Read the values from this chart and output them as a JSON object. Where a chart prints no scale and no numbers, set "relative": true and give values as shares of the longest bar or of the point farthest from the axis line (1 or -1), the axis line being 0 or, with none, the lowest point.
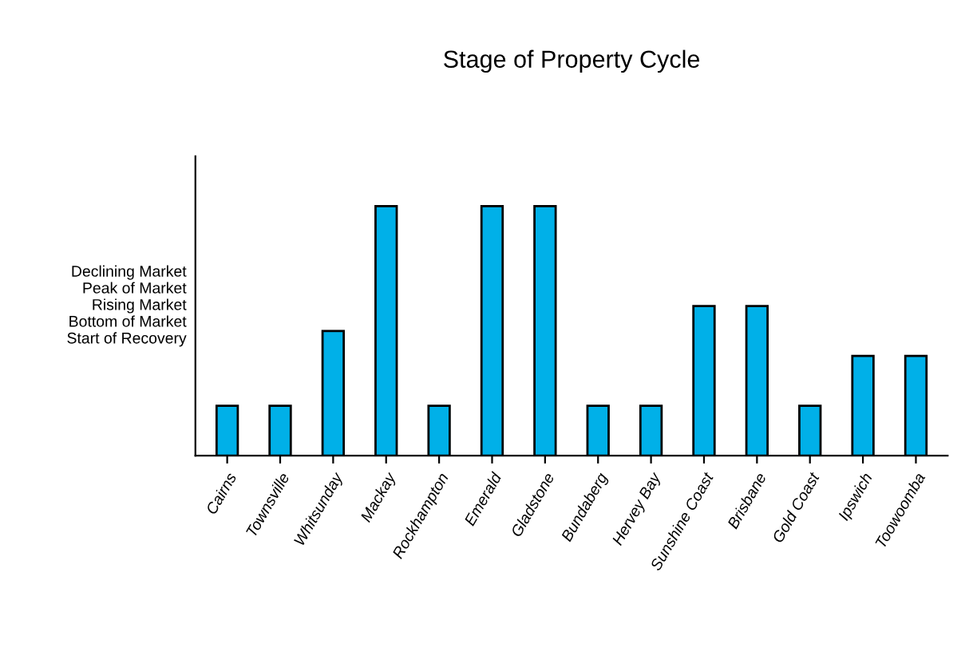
{
  "chart_data": {
    "type": "bar",
    "title": "Stage of Property Cycle",
    "ylabel": "Declining Market\nPeak of Market\nRising Market\nBottom of Market\nStart of Recovery",
    "categories": [
      "Cairns",
      "Townsville",
      "Whitsunday",
      "Mackay",
      "Rockhampton",
      "Emerald",
      "Gladstone",
      "Bundaberg",
      "Hervey Bay",
      "Sunshine Coast",
      "Brisbane",
      "Gold Coast",
      "Ipswich",
      "Toowoomba"
    ],
    "values": [
      0.2,
      0.2,
      0.5,
      1,
      0.2,
      1,
      1,
      0.2,
      0.2,
      0.6,
      0.6,
      0.2,
      0.4,
      0.4
    ],
    "color": "#00b0e8",
    "relative": true,
    "grid": false,
    "legend": false
  }
}
